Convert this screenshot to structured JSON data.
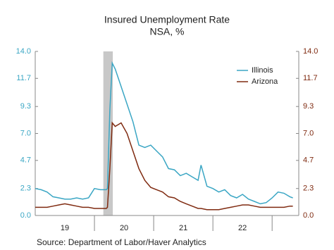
{
  "chart_data": {
    "type": "line",
    "title": "Insured Unemployment Rate",
    "subtitle": "NSA, %",
    "source": "Source:  Department of Labor/Haver Analytics",
    "x": [
      2019.0,
      2019.1,
      2019.2,
      2019.3,
      2019.4,
      2019.5,
      2019.6,
      2019.7,
      2019.8,
      2019.9,
      2020.0,
      2020.1,
      2020.2,
      2020.22,
      2020.26,
      2020.3,
      2020.35,
      2020.45,
      2020.55,
      2020.65,
      2020.75,
      2020.85,
      2020.95,
      2021.05,
      2021.15,
      2021.25,
      2021.35,
      2021.45,
      2021.55,
      2021.65,
      2021.75,
      2021.8,
      2021.9,
      2022.0,
      2022.1,
      2022.2,
      2022.3,
      2022.4,
      2022.5,
      2022.6,
      2022.7,
      2022.8,
      2022.9,
      2023.0,
      2023.1,
      2023.2,
      2023.3,
      2023.35
    ],
    "series": [
      {
        "name": "Illinois",
        "color": "#3aa6c4",
        "axis": "y",
        "values": [
          2.3,
          2.2,
          2.0,
          1.6,
          1.5,
          1.4,
          1.4,
          1.5,
          1.4,
          1.5,
          2.3,
          2.2,
          2.2,
          2.3,
          9.0,
          13.0,
          12.5,
          11.0,
          9.5,
          8.0,
          6.0,
          5.8,
          6.0,
          5.5,
          5.0,
          4.0,
          3.9,
          3.4,
          3.6,
          3.3,
          3.0,
          4.3,
          2.5,
          2.3,
          2.0,
          2.2,
          1.7,
          1.5,
          1.8,
          1.4,
          1.2,
          1.0,
          1.1,
          1.5,
          2.0,
          1.9,
          1.6,
          1.5
        ]
      },
      {
        "name": "Arizona",
        "color": "#7f2a10",
        "axis": "y2",
        "values": [
          0.7,
          0.7,
          0.7,
          0.8,
          0.9,
          1.0,
          0.9,
          0.8,
          0.7,
          0.7,
          0.6,
          0.6,
          0.6,
          0.7,
          4.0,
          7.9,
          7.6,
          7.9,
          7.0,
          5.5,
          4.0,
          3.0,
          2.4,
          2.2,
          2.0,
          1.6,
          1.5,
          1.2,
          1.0,
          0.8,
          0.6,
          0.6,
          0.5,
          0.5,
          0.5,
          0.6,
          0.7,
          0.8,
          0.9,
          0.9,
          0.8,
          0.7,
          0.7,
          0.7,
          0.7,
          0.7,
          0.8,
          0.8
        ]
      }
    ],
    "xlim": [
      2019.0,
      2023.45
    ],
    "xticks": [
      {
        "value": 2019.5,
        "label": "19"
      },
      {
        "value": 2020.5,
        "label": "20"
      },
      {
        "value": 2021.5,
        "label": "21"
      },
      {
        "value": 2022.5,
        "label": "22"
      }
    ],
    "ylim": [
      0,
      14
    ],
    "yticks": [
      {
        "value": 0,
        "label": "0.0"
      },
      2.3,
      4.7,
      {
        "value": 7,
        "label": "7.0"
      },
      9.3,
      11.7,
      {
        "value": 14,
        "label": "14.0"
      }
    ],
    "y2lim": [
      0,
      14
    ],
    "y2ticks": [
      {
        "value": 0,
        "label": "0.0"
      },
      2.3,
      4.7,
      {
        "value": 7,
        "label": "7.0"
      },
      9.3,
      11.7,
      {
        "value": 14,
        "label": "14.0"
      }
    ],
    "shaded": [
      2020.15,
      2020.31
    ],
    "legend": "top-right"
  }
}
